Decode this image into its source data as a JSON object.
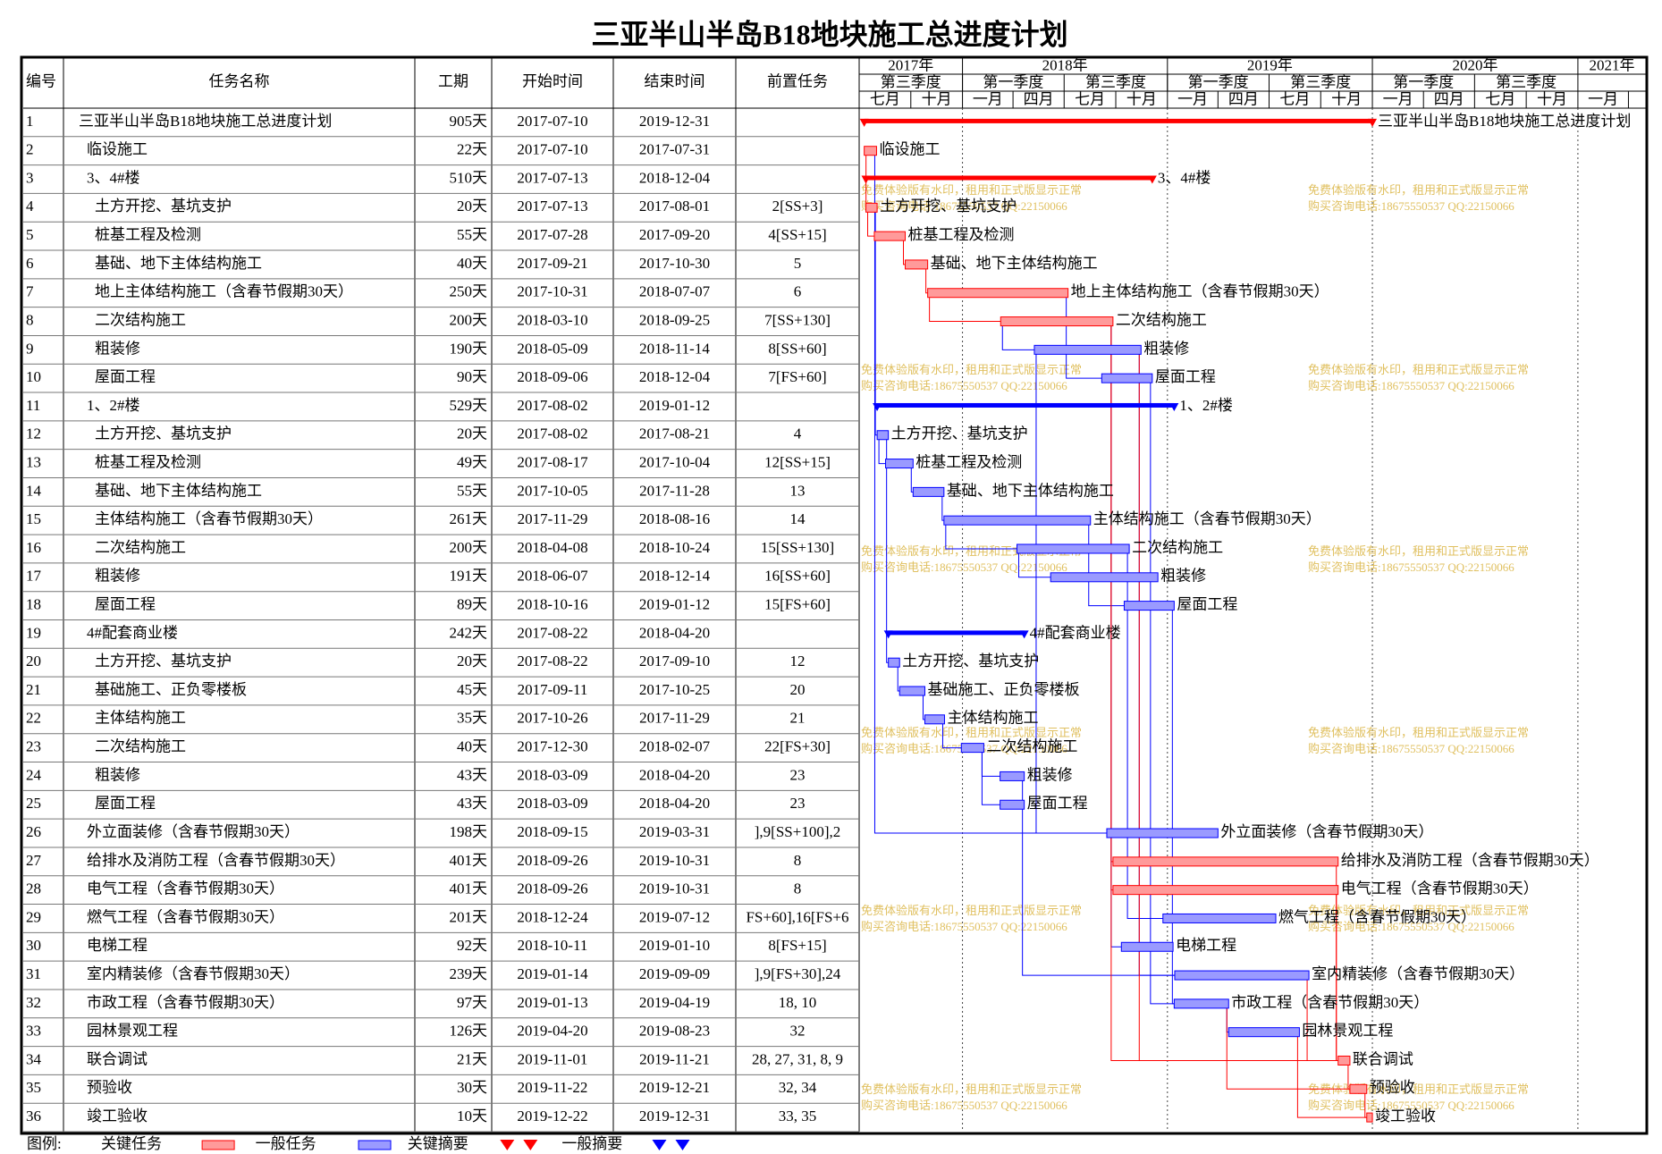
{
  "title": "三亚半山半岛B18地块施工总进度计划",
  "columns": [
    "编号",
    "任务名称",
    "工期",
    "开始时间",
    "结束时间",
    "前置任务"
  ],
  "timescale": {
    "years": [
      "2017年",
      "2018年",
      "2019年",
      "2020年",
      "2021年"
    ],
    "halves": [
      "第三季度",
      "第一季度",
      "第三季度",
      "第一季度",
      "第三季度",
      "第一季度",
      "第三季度"
    ],
    "quarters": [
      "七月",
      "十月",
      "一月",
      "四月",
      "七月",
      "十月",
      "一月",
      "四月",
      "七月",
      "十月",
      "一月",
      "四月",
      "七月",
      "十月",
      "一月"
    ]
  },
  "tasks": [
    {
      "id": "1",
      "name": "三亚半山半岛B18地块施工总进度计划",
      "duration": "905天",
      "start": "2017-07-10",
      "end": "2019-12-31",
      "pred": "",
      "level": 0,
      "kind": "critical-summary"
    },
    {
      "id": "2",
      "name": "临设施工",
      "duration": "22天",
      "start": "2017-07-10",
      "end": "2017-07-31",
      "pred": "",
      "level": 1,
      "kind": "critical"
    },
    {
      "id": "3",
      "name": "3、4#楼",
      "duration": "510天",
      "start": "2017-07-13",
      "end": "2018-12-04",
      "pred": "",
      "level": 1,
      "kind": "critical-summary"
    },
    {
      "id": "4",
      "name": "土方开挖、基坑支护",
      "duration": "20天",
      "start": "2017-07-13",
      "end": "2017-08-01",
      "pred": "2[SS+3]",
      "level": 2,
      "kind": "critical"
    },
    {
      "id": "5",
      "name": "桩基工程及检测",
      "duration": "55天",
      "start": "2017-07-28",
      "end": "2017-09-20",
      "pred": "4[SS+15]",
      "level": 2,
      "kind": "critical"
    },
    {
      "id": "6",
      "name": "基础、地下主体结构施工",
      "duration": "40天",
      "start": "2017-09-21",
      "end": "2017-10-30",
      "pred": "5",
      "level": 2,
      "kind": "critical"
    },
    {
      "id": "7",
      "name": "地上主体结构施工（含春节假期30天）",
      "duration": "250天",
      "start": "2017-10-31",
      "end": "2018-07-07",
      "pred": "6",
      "level": 2,
      "kind": "critical"
    },
    {
      "id": "8",
      "name": "二次结构施工",
      "duration": "200天",
      "start": "2018-03-10",
      "end": "2018-09-25",
      "pred": "7[SS+130]",
      "level": 2,
      "kind": "critical"
    },
    {
      "id": "9",
      "name": "粗装修",
      "duration": "190天",
      "start": "2018-05-09",
      "end": "2018-11-14",
      "pred": "8[SS+60]",
      "level": 2,
      "kind": "normal"
    },
    {
      "id": "10",
      "name": "屋面工程",
      "duration": "90天",
      "start": "2018-09-06",
      "end": "2018-12-04",
      "pred": "7[FS+60]",
      "level": 2,
      "kind": "normal"
    },
    {
      "id": "11",
      "name": "1、2#楼",
      "duration": "529天",
      "start": "2017-08-02",
      "end": "2019-01-12",
      "pred": "",
      "level": 1,
      "kind": "normal-summary"
    },
    {
      "id": "12",
      "name": "土方开挖、基坑支护",
      "duration": "20天",
      "start": "2017-08-02",
      "end": "2017-08-21",
      "pred": "4",
      "level": 2,
      "kind": "normal"
    },
    {
      "id": "13",
      "name": "桩基工程及检测",
      "duration": "49天",
      "start": "2017-08-17",
      "end": "2017-10-04",
      "pred": "12[SS+15]",
      "level": 2,
      "kind": "normal"
    },
    {
      "id": "14",
      "name": "基础、地下主体结构施工",
      "duration": "55天",
      "start": "2017-10-05",
      "end": "2017-11-28",
      "pred": "13",
      "level": 2,
      "kind": "normal"
    },
    {
      "id": "15",
      "name": "主体结构施工（含春节假期30天）",
      "duration": "261天",
      "start": "2017-11-29",
      "end": "2018-08-16",
      "pred": "14",
      "level": 2,
      "kind": "normal"
    },
    {
      "id": "16",
      "name": "二次结构施工",
      "duration": "200天",
      "start": "2018-04-08",
      "end": "2018-10-24",
      "pred": "15[SS+130]",
      "level": 2,
      "kind": "normal"
    },
    {
      "id": "17",
      "name": "粗装修",
      "duration": "191天",
      "start": "2018-06-07",
      "end": "2018-12-14",
      "pred": "16[SS+60]",
      "level": 2,
      "kind": "normal"
    },
    {
      "id": "18",
      "name": "屋面工程",
      "duration": "89天",
      "start": "2018-10-16",
      "end": "2019-01-12",
      "pred": "15[FS+60]",
      "level": 2,
      "kind": "normal"
    },
    {
      "id": "19",
      "name": "4#配套商业楼",
      "duration": "242天",
      "start": "2017-08-22",
      "end": "2018-04-20",
      "pred": "",
      "level": 1,
      "kind": "normal-summary"
    },
    {
      "id": "20",
      "name": "土方开挖、基坑支护",
      "duration": "20天",
      "start": "2017-08-22",
      "end": "2017-09-10",
      "pred": "12",
      "level": 2,
      "kind": "normal"
    },
    {
      "id": "21",
      "name": "基础施工、正负零楼板",
      "duration": "45天",
      "start": "2017-09-11",
      "end": "2017-10-25",
      "pred": "20",
      "level": 2,
      "kind": "normal"
    },
    {
      "id": "22",
      "name": "主体结构施工",
      "duration": "35天",
      "start": "2017-10-26",
      "end": "2017-11-29",
      "pred": "21",
      "level": 2,
      "kind": "normal"
    },
    {
      "id": "23",
      "name": "二次结构施工",
      "duration": "40天",
      "start": "2017-12-30",
      "end": "2018-02-07",
      "pred": "22[FS+30]",
      "level": 2,
      "kind": "normal"
    },
    {
      "id": "24",
      "name": "粗装修",
      "duration": "43天",
      "start": "2018-03-09",
      "end": "2018-04-20",
      "pred": "23",
      "level": 2,
      "kind": "normal"
    },
    {
      "id": "25",
      "name": "屋面工程",
      "duration": "43天",
      "start": "2018-03-09",
      "end": "2018-04-20",
      "pred": "23",
      "level": 2,
      "kind": "normal"
    },
    {
      "id": "26",
      "name": "外立面装修（含春节假期30天）",
      "duration": "198天",
      "start": "2018-09-15",
      "end": "2019-03-31",
      "pred": "],9[SS+100],2",
      "level": 1,
      "kind": "normal"
    },
    {
      "id": "27",
      "name": "给排水及消防工程（含春节假期30天）",
      "duration": "401天",
      "start": "2018-09-26",
      "end": "2019-10-31",
      "pred": "8",
      "level": 1,
      "kind": "critical"
    },
    {
      "id": "28",
      "name": "电气工程（含春节假期30天）",
      "duration": "401天",
      "start": "2018-09-26",
      "end": "2019-10-31",
      "pred": "8",
      "level": 1,
      "kind": "critical"
    },
    {
      "id": "29",
      "name": "燃气工程（含春节假期30天）",
      "duration": "201天",
      "start": "2018-12-24",
      "end": "2019-07-12",
      "pred": "FS+60],16[FS+6",
      "level": 1,
      "kind": "normal"
    },
    {
      "id": "30",
      "name": "电梯工程",
      "duration": "92天",
      "start": "2018-10-11",
      "end": "2019-01-10",
      "pred": "8[FS+15]",
      "level": 1,
      "kind": "normal"
    },
    {
      "id": "31",
      "name": "室内精装修（含春节假期30天）",
      "duration": "239天",
      "start": "2019-01-14",
      "end": "2019-09-09",
      "pred": "],9[FS+30],24",
      "level": 1,
      "kind": "normal"
    },
    {
      "id": "32",
      "name": "市政工程（含春节假期30天）",
      "duration": "97天",
      "start": "2019-01-13",
      "end": "2019-04-19",
      "pred": "18, 10",
      "level": 1,
      "kind": "normal"
    },
    {
      "id": "33",
      "name": "园林景观工程",
      "duration": "126天",
      "start": "2019-04-20",
      "end": "2019-08-23",
      "pred": "32",
      "level": 1,
      "kind": "normal"
    },
    {
      "id": "34",
      "name": "联合调试",
      "duration": "21天",
      "start": "2019-11-01",
      "end": "2019-11-21",
      "pred": "28, 27, 31, 8, 9",
      "level": 1,
      "kind": "critical"
    },
    {
      "id": "35",
      "name": "预验收",
      "duration": "30天",
      "start": "2019-11-22",
      "end": "2019-12-21",
      "pred": "32, 34",
      "level": 1,
      "kind": "critical"
    },
    {
      "id": "36",
      "name": "竣工验收",
      "duration": "10天",
      "start": "2019-12-22",
      "end": "2019-12-31",
      "pred": "33, 35",
      "level": 1,
      "kind": "critical"
    }
  ],
  "watermark": [
    "免费体验版有水印，租用和正式版显示正常",
    "购买咨询电话:18675550537 QQ:22150066"
  ],
  "legend": {
    "label": "图例:",
    "items": [
      {
        "name": "关键任务",
        "kind": "critical",
        "color": "#ff0000"
      },
      {
        "name": "一般任务",
        "kind": "normal",
        "color": "#0000ff"
      },
      {
        "name": "关键摘要",
        "kind": "critical-summary",
        "color": "#ff0000"
      },
      {
        "name": "一般摘要",
        "kind": "normal-summary",
        "color": "#0000ff"
      }
    ]
  }
}
